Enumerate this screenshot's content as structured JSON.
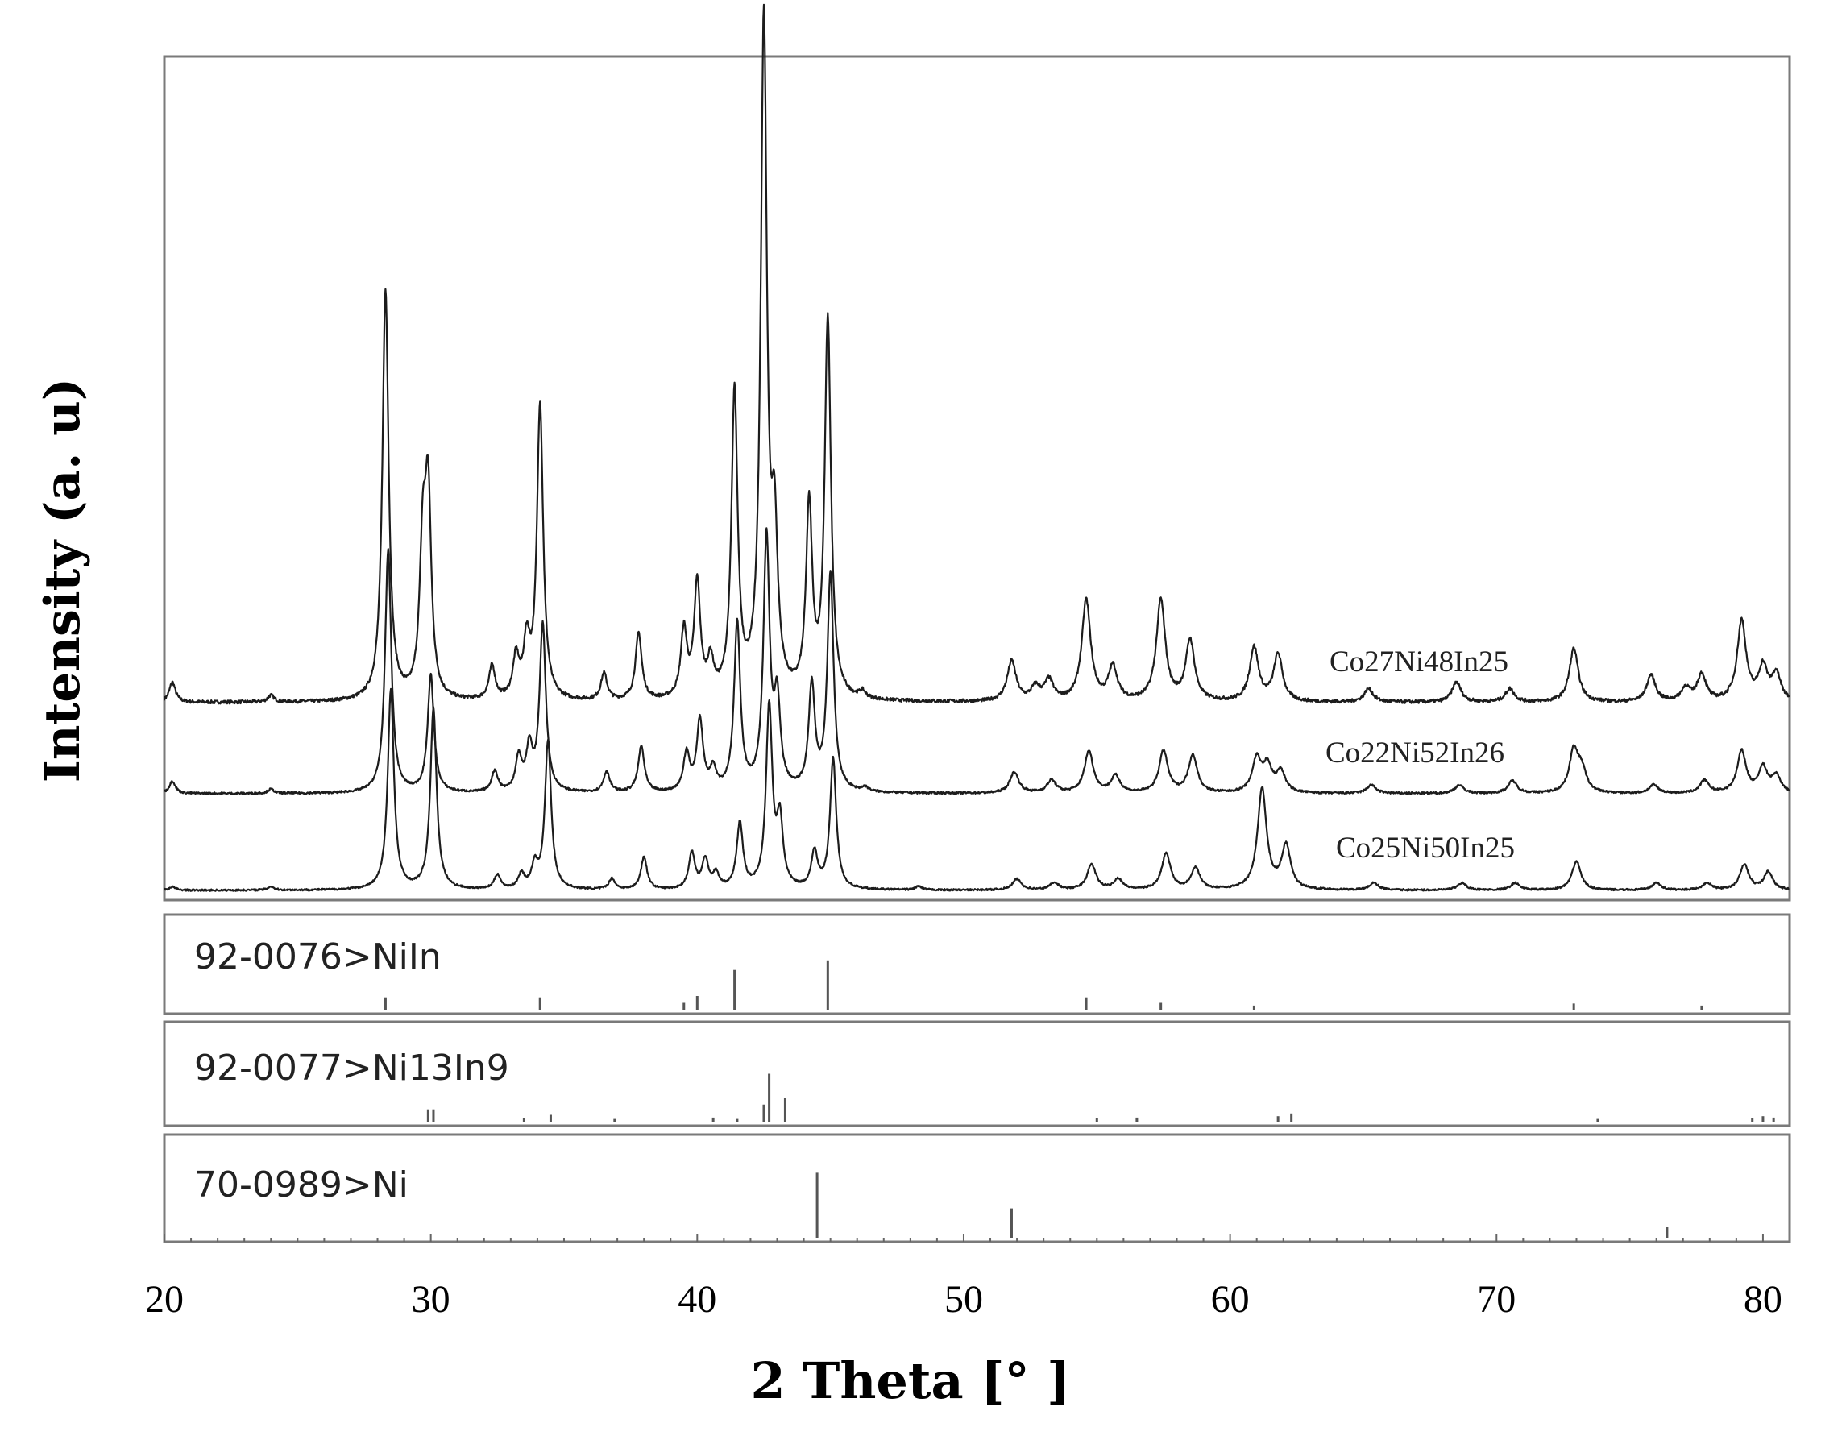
{
  "chart_data": {
    "type": "line",
    "xlabel": "2 Theta [°  ]",
    "ylabel": "Intensity (a. u)",
    "xlim": [
      20,
      81
    ],
    "x_ticks": [
      "20",
      "30",
      "40",
      "50",
      "60",
      "70",
      "80"
    ],
    "grid": false,
    "series": [
      {
        "name": "Co27Ni48In25",
        "peaks": [
          [
            20.3,
            3
          ],
          [
            24,
            1
          ],
          [
            28.3,
            61
          ],
          [
            29.7,
            21
          ],
          [
            29.9,
            29
          ],
          [
            32.3,
            5
          ],
          [
            33.2,
            6
          ],
          [
            33.6,
            8
          ],
          [
            34.1,
            44
          ],
          [
            36.5,
            4
          ],
          [
            37.8,
            10
          ],
          [
            39.5,
            10
          ],
          [
            40,
            17
          ],
          [
            40.5,
            5
          ],
          [
            41.4,
            45
          ],
          [
            42.5,
            100
          ],
          [
            42.9,
            22
          ],
          [
            44.2,
            28
          ],
          [
            44.9,
            56
          ],
          [
            46.2,
            1
          ],
          [
            51.8,
            6
          ],
          [
            52.7,
            2
          ],
          [
            53.2,
            3
          ],
          [
            54.6,
            15
          ],
          [
            55.6,
            5
          ],
          [
            57.4,
            15
          ],
          [
            58.5,
            9
          ],
          [
            60.9,
            8
          ],
          [
            61.8,
            7
          ],
          [
            65.2,
            2
          ],
          [
            68.5,
            3
          ],
          [
            70.5,
            2
          ],
          [
            72.9,
            8
          ],
          [
            75.8,
            4
          ],
          [
            77.1,
            2
          ],
          [
            77.7,
            4
          ],
          [
            79.2,
            12
          ],
          [
            80,
            5
          ],
          [
            80.5,
            4
          ]
        ]
      },
      {
        "name": "Co22Ni52In26",
        "peaks": [
          [
            20.3,
            3
          ],
          [
            24,
            1
          ],
          [
            28.4,
            58
          ],
          [
            30,
            28
          ],
          [
            32.4,
            5
          ],
          [
            33.3,
            8
          ],
          [
            33.7,
            10
          ],
          [
            34.2,
            40
          ],
          [
            36.6,
            5
          ],
          [
            37.9,
            11
          ],
          [
            39.6,
            9
          ],
          [
            40.1,
            17
          ],
          [
            40.6,
            5
          ],
          [
            41.5,
            40
          ],
          [
            42.6,
            60
          ],
          [
            43,
            20
          ],
          [
            44.3,
            25
          ],
          [
            45,
            52
          ],
          [
            46.3,
            1
          ],
          [
            51.9,
            5
          ],
          [
            53.3,
            3
          ],
          [
            54.7,
            10
          ],
          [
            55.7,
            4
          ],
          [
            57.5,
            10
          ],
          [
            58.6,
            9
          ],
          [
            61,
            8
          ],
          [
            61.4,
            6
          ],
          [
            61.9,
            5
          ],
          [
            65.3,
            2
          ],
          [
            68.6,
            2
          ],
          [
            70.6,
            3
          ],
          [
            72.9,
            10
          ],
          [
            73.2,
            5
          ],
          [
            75.9,
            2
          ],
          [
            77.8,
            3
          ],
          [
            79.2,
            10
          ],
          [
            80,
            6
          ],
          [
            80.5,
            4
          ]
        ]
      },
      {
        "name": "Co25Ni50In25",
        "peaks": [
          [
            20.3,
            1
          ],
          [
            24,
            1
          ],
          [
            28.5,
            55
          ],
          [
            30.1,
            50
          ],
          [
            32.5,
            4
          ],
          [
            33.4,
            4
          ],
          [
            33.9,
            6
          ],
          [
            34.4,
            41
          ],
          [
            36.8,
            3
          ],
          [
            38,
            9
          ],
          [
            39.8,
            10
          ],
          [
            40.3,
            8
          ],
          [
            40.7,
            4
          ],
          [
            41.6,
            18
          ],
          [
            42.7,
            50
          ],
          [
            43.1,
            18
          ],
          [
            44.4,
            10
          ],
          [
            45.1,
            36
          ],
          [
            48.3,
            1
          ],
          [
            52,
            3
          ],
          [
            53.4,
            2
          ],
          [
            54.8,
            7
          ],
          [
            55.8,
            3
          ],
          [
            57.6,
            10
          ],
          [
            58.7,
            6
          ],
          [
            61.2,
            28
          ],
          [
            62.1,
            12
          ],
          [
            65.4,
            2
          ],
          [
            68.7,
            2
          ],
          [
            70.7,
            2
          ],
          [
            73,
            8
          ],
          [
            76,
            2
          ],
          [
            77.9,
            2
          ],
          [
            79.3,
            7
          ],
          [
            80.2,
            5
          ]
        ]
      }
    ],
    "references": [
      {
        "label": "92-0076>NiIn",
        "lines": [
          [
            28.3,
            18
          ],
          [
            34.1,
            18
          ],
          [
            39.5,
            10
          ],
          [
            40,
            20
          ],
          [
            41.4,
            58
          ],
          [
            44.9,
            72
          ],
          [
            54.6,
            18
          ],
          [
            57.4,
            10
          ],
          [
            60.9,
            6
          ],
          [
            72.9,
            9
          ],
          [
            77.7,
            6
          ]
        ]
      },
      {
        "label": "92-0077>Ni13In9",
        "lines": [
          [
            29.9,
            18
          ],
          [
            30.1,
            18
          ],
          [
            33.5,
            5
          ],
          [
            34.5,
            10
          ],
          [
            36.9,
            4
          ],
          [
            40.6,
            6
          ],
          [
            41.5,
            4
          ],
          [
            42.5,
            25
          ],
          [
            42.7,
            70
          ],
          [
            43.3,
            35
          ],
          [
            55,
            5
          ],
          [
            56.5,
            6
          ],
          [
            61.8,
            8
          ],
          [
            62.3,
            12
          ],
          [
            73.8,
            4
          ],
          [
            79.6,
            5
          ],
          [
            80,
            8
          ],
          [
            80.4,
            6
          ]
        ]
      },
      {
        "label": "70-0989>Ni",
        "lines": [
          [
            44.5,
            62
          ],
          [
            51.8,
            28
          ],
          [
            76.4,
            10
          ]
        ]
      }
    ]
  }
}
